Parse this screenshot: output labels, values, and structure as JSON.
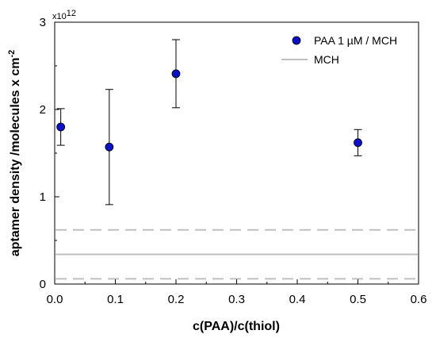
{
  "chart_data": {
    "type": "scatter",
    "xlabel": "c(PAA)/c(thiol)",
    "ylabel": "aptamer density /molecules x cm",
    "ylabel_sup": "-2",
    "y_exponent": "x10",
    "y_exponent_sup": "12",
    "xlim": [
      0,
      0.6
    ],
    "ylim": [
      0,
      3
    ],
    "x_ticks": [
      "0.0",
      "0.1",
      "0.2",
      "0.3",
      "0.4",
      "0.5",
      "0.6"
    ],
    "y_ticks": [
      "0",
      "1",
      "2",
      "3"
    ],
    "grid": false,
    "legend_position": "top-right",
    "series": [
      {
        "name": "PAA 1 µM / MCH",
        "color": "#0a10c8",
        "points": [
          {
            "x": 0.01,
            "y": 1.8,
            "err_low": 1.59,
            "err_high": 2.01
          },
          {
            "x": 0.09,
            "y": 1.57,
            "err_low": 0.91,
            "err_high": 2.23
          },
          {
            "x": 0.2,
            "y": 2.41,
            "err_low": 2.02,
            "err_high": 2.8
          },
          {
            "x": 0.5,
            "y": 1.62,
            "err_low": 1.47,
            "err_high": 1.77
          }
        ]
      },
      {
        "name": "MCH",
        "color": "#c0c0c0",
        "level": 0.34,
        "band_low": 0.06,
        "band_high": 0.62
      }
    ]
  }
}
